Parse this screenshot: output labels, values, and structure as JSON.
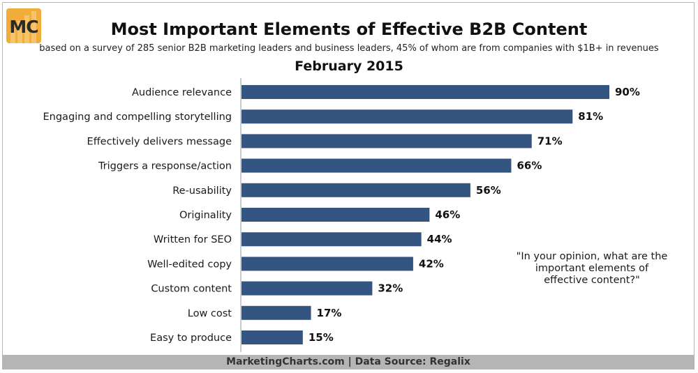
{
  "header": {
    "logo_text": "MC",
    "title": "Most Important Elements of Effective B2B Content",
    "subtitle": "based on a survey of 285 senior B2B marketing leaders and business leaders, 45% of whom are from companies with $1B+ in revenues",
    "date": "February 2015"
  },
  "note": "\"In your opinion, what are the important elements of effective content?\"",
  "footer": "MarketingCharts.com | Data Source: Regalix",
  "colors": {
    "bar": "#34557f",
    "logo": "#f0ad3c",
    "footer": "#b5b5b5"
  },
  "chart_data": {
    "type": "bar",
    "orientation": "horizontal",
    "title": "Most Important Elements of Effective B2B Content",
    "categories": [
      "Audience relevance",
      "Engaging and compelling storytelling",
      "Effectively delivers message",
      "Triggers a response/action",
      "Re-usability",
      "Originality",
      "Written for SEO",
      "Well-edited copy",
      "Custom content",
      "Low cost",
      "Easy to produce"
    ],
    "values": [
      90,
      81,
      71,
      66,
      56,
      46,
      44,
      42,
      32,
      17,
      15
    ],
    "value_labels": [
      "90%",
      "81%",
      "71%",
      "66%",
      "56%",
      "46%",
      "44%",
      "42%",
      "32%",
      "17%",
      "15%"
    ],
    "unit": "%",
    "xlim": [
      0,
      90
    ],
    "grid": false,
    "legend": "none"
  }
}
